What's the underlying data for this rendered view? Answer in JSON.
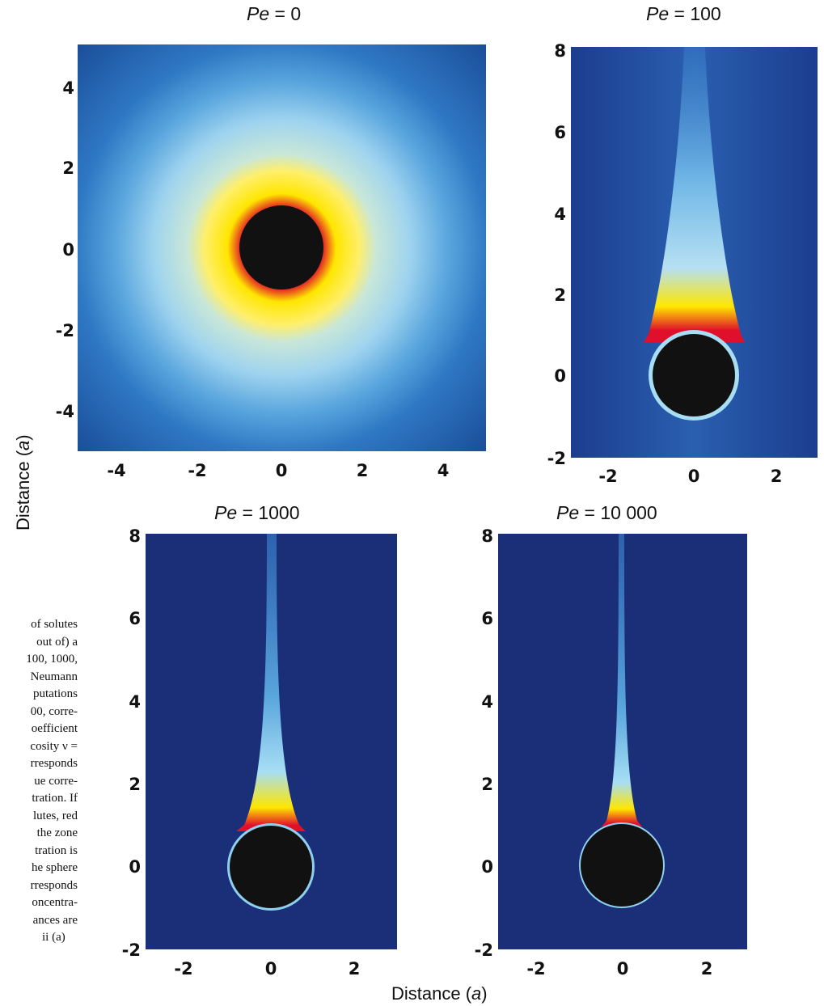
{
  "panels": [
    {
      "id": "pe0",
      "title_prefix": "Pe",
      "title_value": " = 0",
      "xticks": [
        "-4",
        "-2",
        "0",
        "2",
        "4"
      ],
      "yticks": [
        "4",
        "2",
        "0",
        "-2",
        "-4"
      ],
      "xlim": [
        -5,
        5
      ],
      "ylim": [
        -5,
        5
      ]
    },
    {
      "id": "pe100",
      "title_prefix": "Pe",
      "title_value": " = 100",
      "xticks": [
        "-2",
        "0",
        "2"
      ],
      "yticks": [
        "8",
        "6",
        "4",
        "2",
        "0",
        "-2"
      ],
      "xlim": [
        -3,
        3
      ],
      "ylim": [
        -2,
        8
      ]
    },
    {
      "id": "pe1000",
      "title_prefix": "Pe",
      "title_value": " = 1000",
      "xticks": [
        "-2",
        "0",
        "2"
      ],
      "yticks": [
        "8",
        "6",
        "4",
        "2",
        "0",
        "-2"
      ],
      "xlim": [
        -3,
        3
      ],
      "ylim": [
        -2,
        8
      ]
    },
    {
      "id": "pe10000",
      "title_prefix": "Pe",
      "title_value": " = 10 000",
      "xticks": [
        "-2",
        "0",
        "2"
      ],
      "yticks": [
        "8",
        "6",
        "4",
        "2",
        "0",
        "-2"
      ],
      "xlim": [
        -3,
        3
      ],
      "ylim": [
        -2,
        8
      ]
    }
  ],
  "axis": {
    "y_label_text": "Distance (",
    "y_label_unit": "a",
    "y_label_close": ")",
    "x_label_text": "Distance (",
    "x_label_unit": "a",
    "x_label_close": ")"
  },
  "caption_lines": [
    "of solutes",
    "out of) a",
    "100, 1000,",
    "Neumann",
    "putations",
    "00, corre-",
    "oefficient",
    "cosity ν =",
    "rresponds",
    "ue corre-",
    "tration. If",
    "lutes, red",
    "the zone",
    "tration is",
    "he sphere",
    "rresponds",
    "oncentra-",
    "ances are",
    "ii (a)"
  ],
  "colors": {
    "background_field": "#1b2e78",
    "sphere": "#111111",
    "high": "#e0102a",
    "mid": "#ffe600",
    "low": "#8fd0ee"
  }
}
